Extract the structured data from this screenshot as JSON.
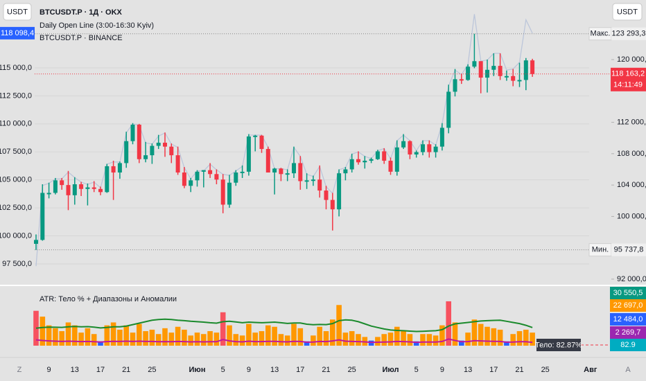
{
  "ui": {
    "currency_left": "USDT",
    "currency_right": "USDT",
    "corner_left": "Z",
    "corner_right": "A"
  },
  "chart_data": [
    {
      "type": "candlestick",
      "title": "BTCUSDT.P · 1Д · OKX",
      "subtitle": "Daily Open Line (3:00-16:30 Kyiv)",
      "x": [
        "05-07",
        "05-08",
        "05-09",
        "05-10",
        "05-11",
        "05-12",
        "05-13",
        "05-14",
        "05-15",
        "05-16",
        "05-17",
        "05-18",
        "05-19",
        "05-20",
        "05-21",
        "05-22",
        "05-23",
        "05-24",
        "05-25",
        "05-26",
        "05-27",
        "05-28",
        "05-29",
        "05-30",
        "05-31",
        "06-01",
        "06-02",
        "06-03",
        "06-04",
        "06-05",
        "06-06",
        "06-07",
        "06-08",
        "06-09",
        "06-10",
        "06-11",
        "06-12",
        "06-13",
        "06-14",
        "06-15",
        "06-16",
        "06-17",
        "06-18",
        "06-19",
        "06-20",
        "06-21",
        "06-22",
        "06-23",
        "06-24",
        "06-25",
        "06-26",
        "06-27",
        "06-28",
        "06-29",
        "06-30",
        "07-01",
        "07-02",
        "07-03",
        "07-04",
        "07-05",
        "07-06",
        "07-07",
        "07-08",
        "07-09",
        "07-10",
        "07-11",
        "07-12",
        "07-13",
        "07-14",
        "07-15",
        "07-16",
        "07-17",
        "07-18",
        "07-19",
        "07-20",
        "07-21",
        "07-22",
        "07-23"
      ],
      "open": [
        96500,
        97000,
        103000,
        103000,
        104600,
        104000,
        102700,
        104100,
        103500,
        103700,
        103500,
        103100,
        106400,
        105600,
        106800,
        109600,
        111700,
        107300,
        107800,
        109000,
        109400,
        108900,
        107800,
        105600,
        103900,
        104600,
        105700,
        105900,
        105400,
        104700,
        101500,
        104300,
        105600,
        105700,
        110200,
        110300,
        108600,
        105600,
        106100,
        105400,
        105500,
        106800,
        104500,
        104600,
        104700,
        103300,
        102100,
        100900,
        105500,
        106000,
        107300,
        106900,
        107100,
        107300,
        108300,
        107100,
        105700,
        108800,
        109600,
        107900,
        108200,
        109200,
        108200,
        108900,
        111300,
        115900,
        117500,
        117400,
        119100,
        119800,
        117700,
        118700,
        119200,
        117900,
        117900,
        117300,
        117400,
        119900
      ],
      "high": [
        97700,
        104100,
        104300,
        104900,
        104900,
        105800,
        105000,
        104400,
        104200,
        104500,
        103800,
        106700,
        107100,
        107000,
        110800,
        111900,
        111800,
        109500,
        109300,
        110400,
        110700,
        109300,
        108900,
        106300,
        104900,
        105900,
        105900,
        106800,
        106000,
        105400,
        105300,
        105900,
        106500,
        110500,
        110400,
        110400,
        108900,
        106200,
        106200,
        106000,
        108900,
        107700,
        105500,
        105200,
        106500,
        103900,
        103000,
        106000,
        106300,
        108000,
        108300,
        107700,
        107500,
        108500,
        108700,
        107500,
        109700,
        110500,
        109700,
        108400,
        109700,
        109700,
        109200,
        111900,
        116800,
        118800,
        118200,
        119400,
        123293.3,
        119800,
        120000,
        120800,
        120800,
        118600,
        118800,
        119600,
        120200,
        120100
      ],
      "low": [
        95737.8,
        96900,
        102300,
        102800,
        103400,
        100800,
        101500,
        102600,
        101400,
        103100,
        102700,
        103000,
        102100,
        104800,
        106200,
        109200,
        106800,
        106900,
        106700,
        108600,
        107600,
        106800,
        105300,
        103600,
        103100,
        103800,
        103700,
        104900,
        104100,
        100400,
        101100,
        103900,
        104900,
        105200,
        108300,
        108100,
        105600,
        102800,
        104500,
        104500,
        104900,
        103400,
        103500,
        103900,
        102400,
        100900,
        98200,
        100000,
        104600,
        105600,
        106600,
        106100,
        106800,
        107200,
        106700,
        105300,
        105200,
        108600,
        107300,
        107500,
        107800,
        107500,
        107500,
        108400,
        110600,
        115300,
        116900,
        117300,
        118900,
        115700,
        115800,
        117900,
        117400,
        117300,
        116600,
        116500,
        116100,
        117800
      ],
      "close": [
        97000,
        103000,
        103000,
        104600,
        104000,
        102700,
        104100,
        103500,
        103700,
        103500,
        103100,
        106400,
        105600,
        106800,
        109600,
        111700,
        107300,
        107800,
        109000,
        109400,
        108900,
        107800,
        105600,
        103900,
        104600,
        105700,
        105900,
        105400,
        104700,
        101500,
        104300,
        105600,
        105700,
        110200,
        110300,
        108600,
        105600,
        106100,
        105400,
        105500,
        106800,
        104500,
        104600,
        104700,
        103300,
        102100,
        100900,
        105500,
        106000,
        107300,
        106900,
        107100,
        107300,
        108300,
        107100,
        105700,
        108800,
        109600,
        107900,
        108200,
        109200,
        108200,
        108900,
        111300,
        115900,
        117500,
        117400,
        119100,
        119800,
        117700,
        118700,
        119200,
        117900,
        117900,
        117300,
        117400,
        119900,
        118163.2
      ],
      "up_color": "#089981",
      "down_color": "#f23645",
      "ylim": [
        91200,
        127600
      ],
      "yticks": [
        {
          "value": 92000,
          "label": "92 000,0"
        },
        {
          "value": 100000,
          "label": "100 000,0"
        },
        {
          "value": 104000,
          "label": "104 000,0"
        },
        {
          "value": 108000,
          "label": "108 000,0"
        },
        {
          "value": 112000,
          "label": "112 000,0"
        },
        {
          "value": 120000,
          "label": "120 000,0"
        }
      ],
      "y2lim": [
        95580,
        121060
      ],
      "y2ticks": [
        {
          "value": 97500,
          "label": "97 500,0"
        },
        {
          "value": 100000,
          "label": "100 000,0"
        },
        {
          "value": 102500,
          "label": "102 500,0"
        },
        {
          "value": 105000,
          "label": "105 000,0"
        },
        {
          "value": 107500,
          "label": "107 500,0"
        },
        {
          "value": 110000,
          "label": "110 000,0"
        },
        {
          "value": 112500,
          "label": "112 500,0"
        },
        {
          "value": 115000,
          "label": "115 000,0"
        }
      ],
      "grid": true,
      "series": [
        {
          "name": "BTCUSDT.P · BINANCE",
          "color": "#bcc6da",
          "axis": "y2",
          "values": [
            97300,
            104500,
            104700,
            105100,
            105100,
            105700,
            105200,
            104800,
            104600,
            104800,
            104300,
            106400,
            106600,
            106600,
            109200,
            110000,
            109900,
            108300,
            108200,
            108900,
            109200,
            108200,
            107900,
            106100,
            105100,
            105800,
            105800,
            106400,
            105900,
            105500,
            105400,
            105800,
            106200,
            109000,
            109000,
            109000,
            107900,
            106000,
            106000,
            105900,
            107900,
            107100,
            105500,
            105300,
            106200,
            104400,
            103800,
            105900,
            106100,
            107300,
            107500,
            107100,
            106900,
            107600,
            107800,
            106900,
            108500,
            109000,
            108500,
            107600,
            108500,
            108500,
            108100,
            110000,
            113400,
            114800,
            114400,
            115300,
            119800,
            115600,
            115700,
            116300,
            116300,
            114800,
            114900,
            115500,
            119300,
            118098.4
          ]
        }
      ],
      "annotations": {
        "max": {
          "label": "Макс.",
          "value": 123293.3,
          "value_label": "123 293,3"
        },
        "min": {
          "label": "Мин.",
          "value": 95737.8,
          "value_label": "95 737,8"
        },
        "last": {
          "value": 118163.2,
          "value_label": "118 163,2",
          "countdown": "14:11:49",
          "color": "#f23645"
        },
        "y2_last": {
          "value": 118098.4,
          "value_label": "118 098,4",
          "color": "#2962ff"
        }
      },
      "xticks": [
        {
          "value": "05-09",
          "label": "9"
        },
        {
          "value": "05-13",
          "label": "13"
        },
        {
          "value": "05-17",
          "label": "17"
        },
        {
          "value": "05-21",
          "label": "21"
        },
        {
          "value": "05-25",
          "label": "25"
        },
        {
          "value": "06-01",
          "label": "Июн"
        },
        {
          "value": "06-05",
          "label": "5"
        },
        {
          "value": "06-09",
          "label": "9"
        },
        {
          "value": "06-13",
          "label": "13"
        },
        {
          "value": "06-17",
          "label": "17"
        },
        {
          "value": "06-21",
          "label": "21"
        },
        {
          "value": "06-25",
          "label": "25"
        },
        {
          "value": "07-01",
          "label": "Июл"
        },
        {
          "value": "07-05",
          "label": "5"
        },
        {
          "value": "07-09",
          "label": "9"
        },
        {
          "value": "07-13",
          "label": "13"
        },
        {
          "value": "07-17",
          "label": "17"
        },
        {
          "value": "07-21",
          "label": "21"
        },
        {
          "value": "07-25",
          "label": "25"
        },
        {
          "value": "08-01",
          "label": "Авг"
        }
      ]
    },
    {
      "type": "bar",
      "title": "ATR: Тело % + Диапазоны и Аномалии",
      "body_label": "Тело: 82.87%",
      "x": [
        "05-07",
        "05-08",
        "05-09",
        "05-10",
        "05-11",
        "05-12",
        "05-13",
        "05-14",
        "05-15",
        "05-16",
        "05-17",
        "05-18",
        "05-19",
        "05-20",
        "05-21",
        "05-22",
        "05-23",
        "05-24",
        "05-25",
        "05-26",
        "05-27",
        "05-28",
        "05-29",
        "05-30",
        "05-31",
        "06-01",
        "06-02",
        "06-03",
        "06-04",
        "06-05",
        "06-06",
        "06-07",
        "06-08",
        "06-09",
        "06-10",
        "06-11",
        "06-12",
        "06-13",
        "06-14",
        "06-15",
        "06-16",
        "06-17",
        "06-18",
        "06-19",
        "06-20",
        "06-21",
        "06-22",
        "06-23",
        "06-24",
        "06-25",
        "06-26",
        "06-27",
        "06-28",
        "06-29",
        "06-30",
        "07-01",
        "07-02",
        "07-03",
        "07-04",
        "07-05",
        "07-06",
        "07-07",
        "07-08",
        "07-09",
        "07-10",
        "07-11",
        "07-12",
        "07-13",
        "07-14",
        "07-15",
        "07-16",
        "07-17",
        "07-18",
        "07-19",
        "07-20",
        "07-21",
        "07-22",
        "07-23"
      ],
      "values": [
        24000,
        20000,
        14000,
        12000,
        10000,
        16000,
        14000,
        9000,
        12000,
        8000,
        3000,
        14000,
        16000,
        11000,
        14000,
        9000,
        15000,
        10000,
        11000,
        8000,
        12000,
        9000,
        13000,
        11000,
        7000,
        9000,
        8000,
        10000,
        9000,
        23000,
        14000,
        8000,
        7000,
        15000,
        9000,
        10000,
        14000,
        13000,
        8000,
        7000,
        15000,
        12000,
        3000,
        7000,
        13000,
        10000,
        18000,
        28000,
        9000,
        10000,
        8000,
        6000,
        3500,
        6000,
        8000,
        9000,
        13000,
        10000,
        8000,
        3000,
        8000,
        8000,
        7000,
        14000,
        30550.5,
        16000,
        3500,
        9000,
        18000,
        15000,
        13000,
        12000,
        11000,
        3000,
        8000,
        10000,
        11000,
        9000
      ],
      "colors": [
        "#f7525f",
        "#ff9800",
        "#ff9800",
        "#ff9800",
        "#ff9800",
        "#ff9800",
        "#ff9800",
        "#ff9800",
        "#ff9800",
        "#ff9800",
        "#2962ff",
        "#ff9800",
        "#ff9800",
        "#ff9800",
        "#ff9800",
        "#ff9800",
        "#ff9800",
        "#ff9800",
        "#ff9800",
        "#ff9800",
        "#ff9800",
        "#ff9800",
        "#ff9800",
        "#ff9800",
        "#ff9800",
        "#ff9800",
        "#ff9800",
        "#ff9800",
        "#ff9800",
        "#f7525f",
        "#ff9800",
        "#ff9800",
        "#ff9800",
        "#ff9800",
        "#ff9800",
        "#ff9800",
        "#ff9800",
        "#ff9800",
        "#ff9800",
        "#ff9800",
        "#ff9800",
        "#ff9800",
        "#2962ff",
        "#ff9800",
        "#ff9800",
        "#ff9800",
        "#ff9800",
        "#ff9800",
        "#ff9800",
        "#ff9800",
        "#ff9800",
        "#ff9800",
        "#2962ff",
        "#ff9800",
        "#ff9800",
        "#ff9800",
        "#ff9800",
        "#ff9800",
        "#ff9800",
        "#2962ff",
        "#ff9800",
        "#ff9800",
        "#ff9800",
        "#ff9800",
        "#f7525f",
        "#ff9800",
        "#2962ff",
        "#ff9800",
        "#ff9800",
        "#ff9800",
        "#ff9800",
        "#ff9800",
        "#ff9800",
        "#2962ff",
        "#ff9800",
        "#ff9800",
        "#ff9800",
        "#ff9800"
      ],
      "ylim": [
        0,
        31000
      ],
      "lines": [
        {
          "color": "#1a8a2c",
          "values": [
            12000,
            12500,
            12800,
            12700,
            12600,
            13000,
            13200,
            13000,
            13100,
            12800,
            12200,
            12500,
            13000,
            13000,
            13500,
            14500,
            15500,
            16500,
            17500,
            18000,
            18200,
            18000,
            17500,
            17200,
            16800,
            16500,
            16200,
            15800,
            15500,
            16500,
            16800,
            16300,
            15800,
            16200,
            16000,
            15800,
            16000,
            16200,
            15800,
            15300,
            15600,
            15600,
            14800,
            14400,
            14600,
            14500,
            15200,
            17200,
            17800,
            17500,
            16500,
            15000,
            13500,
            12500,
            11500,
            10800,
            10500,
            10300,
            10000,
            9800,
            9900,
            10100,
            10300,
            11000,
            13500,
            15000,
            15500,
            16000,
            16500,
            17000,
            17200,
            17400,
            17500,
            16800,
            16000,
            15200,
            14000,
            12484
          ]
        },
        {
          "color": "#c2189a",
          "values": [
            4000,
            3600,
            3300,
            3100,
            2900,
            3100,
            3000,
            2800,
            2900,
            2700,
            2500,
            2800,
            3000,
            2900,
            3100,
            2900,
            3100,
            2900,
            2900,
            2700,
            2800,
            2700,
            2900,
            2800,
            2600,
            2700,
            2600,
            2700,
            2700,
            4200,
            3300,
            2800,
            2600,
            3100,
            2800,
            2800,
            3000,
            3000,
            2700,
            2600,
            3000,
            2900,
            2400,
            2500,
            2900,
            2800,
            3300,
            4000,
            3100,
            2900,
            2800,
            2600,
            2300,
            2400,
            2500,
            2600,
            2900,
            2800,
            2600,
            2300,
            2500,
            2500,
            2500,
            2900,
            4600,
            3600,
            2700,
            2800,
            3500,
            3300,
            3100,
            3000,
            2900,
            2400,
            2500,
            2700,
            2700,
            2269.7
          ]
        }
      ],
      "readouts": [
        {
          "value": 30550.5,
          "label": "30 550,5",
          "color": "#089981"
        },
        {
          "value": 22697,
          "label": "22 697,0",
          "color": "#ff9800"
        },
        {
          "value": 12484,
          "label": "12 484,0",
          "color": "#2962ff"
        },
        {
          "value": 2269.7,
          "label": "2 269,7",
          "color": "#9c27b0"
        },
        {
          "value": 82.9,
          "label": "82.9",
          "color": "#00acc1"
        }
      ]
    }
  ]
}
